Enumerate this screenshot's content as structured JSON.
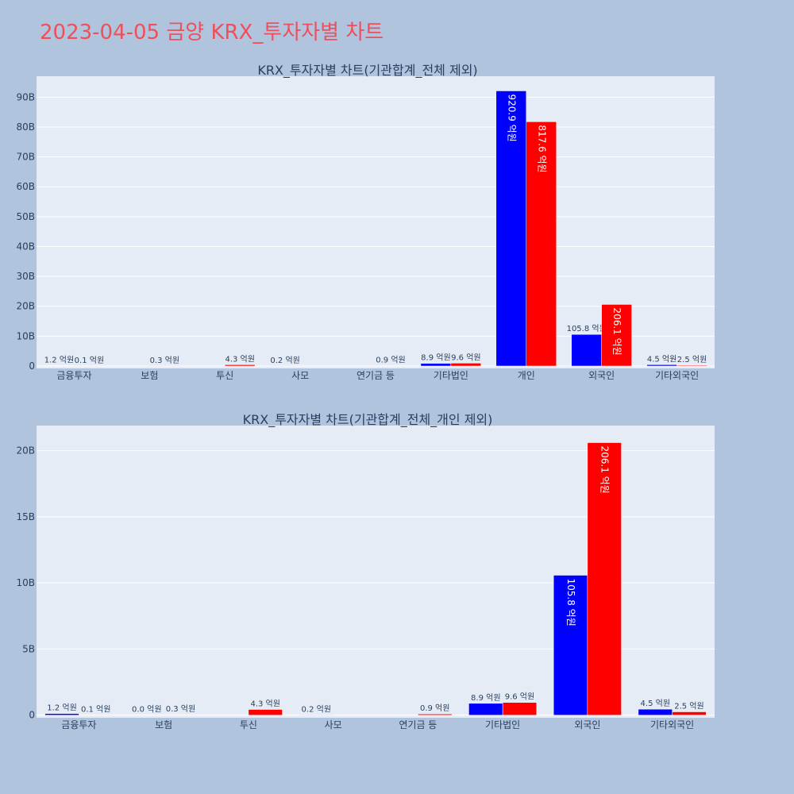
{
  "title": "2023-04-05 금양 KRX_투자자별 차트",
  "colors": {
    "title": "#ef4f5a",
    "background": "#b0c4de",
    "plot_background": "#e5ecf6",
    "series_a": "#0000ff",
    "series_b": "#ff0000"
  },
  "chart_data": [
    {
      "type": "bar",
      "title": "KRX_투자자별 차트(기관합계_전체 제외)",
      "categories": [
        "금융투자",
        "보험",
        "투신",
        "사모",
        "연기금 등",
        "기타법인",
        "개인",
        "외국인",
        "기타외국인"
      ],
      "series": [
        {
          "color": "#0000ff",
          "values": [
            120000000,
            0,
            0,
            20000000,
            0,
            890000000,
            92090000000,
            10580000000,
            450000000
          ],
          "labels": [
            "1.2 억원",
            "",
            "",
            "0.2 억원",
            "",
            "8.9 억원",
            "920.9 억원",
            "105.8 억원",
            "4.5 억원"
          ]
        },
        {
          "color": "#ff0000",
          "values": [
            10000000,
            30000000,
            430000000,
            0,
            90000000,
            960000000,
            81760000000,
            20610000000,
            250000000
          ],
          "labels": [
            "0.1 억원",
            "0.3 억원",
            "4.3 억원",
            "",
            "0.9 억원",
            "9.6 억원",
            "817.6 억원",
            "206.1 억원",
            "2.5 억원"
          ]
        }
      ],
      "yticks": [
        {
          "value": 0,
          "label": "0"
        },
        {
          "value": 10000000000,
          "label": "10B"
        },
        {
          "value": 20000000000,
          "label": "20B"
        },
        {
          "value": 30000000000,
          "label": "30B"
        },
        {
          "value": 40000000000,
          "label": "40B"
        },
        {
          "value": 50000000000,
          "label": "50B"
        },
        {
          "value": 60000000000,
          "label": "60B"
        },
        {
          "value": 70000000000,
          "label": "70B"
        },
        {
          "value": 80000000000,
          "label": "80B"
        },
        {
          "value": 90000000000,
          "label": "90B"
        }
      ],
      "ylim": [
        -800000000,
        97000000000
      ],
      "grid": true,
      "legend": "none"
    },
    {
      "type": "bar",
      "title": "KRX_투자자별 차트(기관합계_전체_개인 제외)",
      "categories": [
        "금융투자",
        "보험",
        "투신",
        "사모",
        "연기금 등",
        "기타법인",
        "외국인",
        "기타외국인"
      ],
      "series": [
        {
          "color": "#0000ff",
          "values": [
            120000000,
            0,
            0,
            20000000,
            0,
            890000000,
            10580000000,
            450000000
          ],
          "labels": [
            "1.2 억원",
            "0.0 억원",
            "",
            "0.2 억원",
            "",
            "8.9 억원",
            "105.8 억원",
            "4.5 억원"
          ]
        },
        {
          "color": "#ff0000",
          "values": [
            10000000,
            30000000,
            430000000,
            0,
            90000000,
            960000000,
            20610000000,
            250000000
          ],
          "labels": [
            "0.1 억원",
            "0.3 억원",
            "4.3 억원",
            "",
            "0.9 억원",
            "9.6 억원",
            "206.1 억원",
            "2.5 억원"
          ]
        }
      ],
      "yticks": [
        {
          "value": 0,
          "label": "0"
        },
        {
          "value": 5000000000,
          "label": "5B"
        },
        {
          "value": 10000000000,
          "label": "10B"
        },
        {
          "value": 15000000000,
          "label": "15B"
        },
        {
          "value": 20000000000,
          "label": "20B"
        }
      ],
      "ylim": [
        -200000000,
        21900000000
      ],
      "grid": true,
      "legend": "none"
    }
  ]
}
